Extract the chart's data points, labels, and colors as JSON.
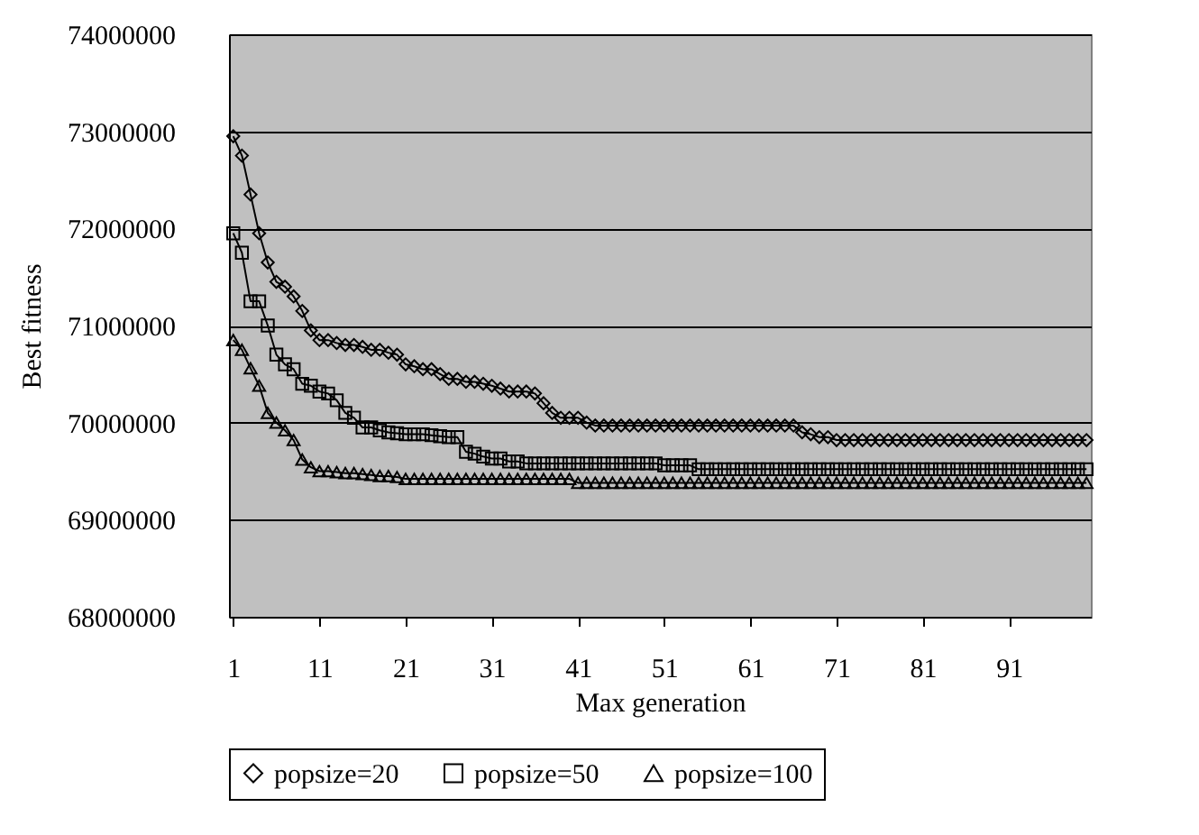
{
  "chart_data": {
    "type": "line",
    "xlabel": "Max generation",
    "ylabel": "Best fitness",
    "x": [
      1,
      2,
      3,
      4,
      5,
      6,
      7,
      8,
      9,
      10,
      11,
      12,
      13,
      14,
      15,
      16,
      17,
      18,
      19,
      20,
      21,
      22,
      23,
      24,
      25,
      26,
      27,
      28,
      29,
      30,
      31,
      32,
      33,
      34,
      35,
      36,
      37,
      38,
      39,
      40,
      41,
      42,
      43,
      44,
      45,
      46,
      47,
      48,
      49,
      50,
      51,
      52,
      53,
      54,
      55,
      56,
      57,
      58,
      59,
      60,
      61,
      62,
      63,
      64,
      65,
      66,
      67,
      68,
      69,
      70,
      71,
      72,
      73,
      74,
      75,
      76,
      77,
      78,
      79,
      80,
      81,
      82,
      83,
      84,
      85,
      86,
      87,
      88,
      89,
      90,
      91,
      92,
      93,
      94,
      95,
      96,
      97,
      98,
      99,
      100
    ],
    "xlim": [
      0.5,
      100.5
    ],
    "xticks": [
      1,
      11,
      21,
      31,
      41,
      51,
      61,
      71,
      81,
      91
    ],
    "ylim": [
      68000000,
      74000000
    ],
    "yticks": [
      68000000,
      69000000,
      70000000,
      71000000,
      72000000,
      73000000,
      74000000
    ],
    "grid": "y",
    "legend": "bottom",
    "line_style": "solid",
    "series": [
      {
        "name": "popsize=20",
        "color": "#000000",
        "marker": "diamond",
        "values": [
          72950000,
          72750000,
          72350000,
          71950000,
          71650000,
          71450000,
          71400000,
          71300000,
          71150000,
          70950000,
          70850000,
          70850000,
          70820000,
          70800000,
          70800000,
          70780000,
          70750000,
          70750000,
          70720000,
          70700000,
          70600000,
          70580000,
          70550000,
          70550000,
          70500000,
          70450000,
          70450000,
          70420000,
          70420000,
          70400000,
          70380000,
          70350000,
          70320000,
          70320000,
          70320000,
          70300000,
          70200000,
          70100000,
          70050000,
          70050000,
          70050000,
          70000000,
          69970000,
          69970000,
          69970000,
          69970000,
          69970000,
          69970000,
          69970000,
          69970000,
          69970000,
          69970000,
          69970000,
          69970000,
          69970000,
          69970000,
          69970000,
          69970000,
          69970000,
          69970000,
          69970000,
          69970000,
          69970000,
          69970000,
          69970000,
          69970000,
          69900000,
          69880000,
          69850000,
          69850000,
          69820000,
          69820000,
          69820000,
          69820000,
          69820000,
          69820000,
          69820000,
          69820000,
          69820000,
          69820000,
          69820000,
          69820000,
          69820000,
          69820000,
          69820000,
          69820000,
          69820000,
          69820000,
          69820000,
          69820000,
          69820000,
          69820000,
          69820000,
          69820000,
          69820000,
          69820000,
          69820000,
          69820000,
          69820000,
          69820000
        ]
      },
      {
        "name": "popsize=50",
        "color": "#000000",
        "marker": "square",
        "values": [
          71950000,
          71750000,
          71250000,
          71250000,
          71000000,
          70700000,
          70600000,
          70550000,
          70400000,
          70380000,
          70320000,
          70300000,
          70230000,
          70100000,
          70050000,
          69950000,
          69950000,
          69920000,
          69900000,
          69890000,
          69880000,
          69880000,
          69880000,
          69870000,
          69860000,
          69850000,
          69850000,
          69700000,
          69680000,
          69650000,
          69630000,
          69630000,
          69600000,
          69600000,
          69580000,
          69580000,
          69580000,
          69580000,
          69580000,
          69580000,
          69580000,
          69580000,
          69580000,
          69580000,
          69580000,
          69580000,
          69580000,
          69580000,
          69580000,
          69580000,
          69560000,
          69560000,
          69560000,
          69560000,
          69520000,
          69520000,
          69520000,
          69520000,
          69520000,
          69520000,
          69520000,
          69520000,
          69520000,
          69520000,
          69520000,
          69520000,
          69520000,
          69520000,
          69520000,
          69520000,
          69520000,
          69520000,
          69520000,
          69520000,
          69520000,
          69520000,
          69520000,
          69520000,
          69520000,
          69520000,
          69520000,
          69520000,
          69520000,
          69520000,
          69520000,
          69520000,
          69520000,
          69520000,
          69520000,
          69520000,
          69520000,
          69520000,
          69520000,
          69520000,
          69520000,
          69520000,
          69520000,
          69520000,
          69520000,
          69520000
        ]
      },
      {
        "name": "popsize=100",
        "color": "#000000",
        "marker": "triangle",
        "values": [
          70850000,
          70750000,
          70560000,
          70380000,
          70100000,
          70000000,
          69920000,
          69820000,
          69620000,
          69540000,
          69500000,
          69500000,
          69490000,
          69480000,
          69480000,
          69470000,
          69460000,
          69450000,
          69450000,
          69440000,
          69420000,
          69420000,
          69420000,
          69420000,
          69420000,
          69420000,
          69420000,
          69420000,
          69420000,
          69420000,
          69420000,
          69420000,
          69420000,
          69420000,
          69420000,
          69420000,
          69420000,
          69420000,
          69420000,
          69420000,
          69380000,
          69380000,
          69380000,
          69380000,
          69380000,
          69380000,
          69380000,
          69380000,
          69380000,
          69380000,
          69380000,
          69380000,
          69380000,
          69380000,
          69380000,
          69380000,
          69380000,
          69380000,
          69380000,
          69380000,
          69380000,
          69380000,
          69380000,
          69380000,
          69380000,
          69380000,
          69380000,
          69380000,
          69380000,
          69380000,
          69380000,
          69380000,
          69380000,
          69380000,
          69380000,
          69380000,
          69380000,
          69380000,
          69380000,
          69380000,
          69380000,
          69380000,
          69380000,
          69380000,
          69380000,
          69380000,
          69380000,
          69380000,
          69380000,
          69380000,
          69380000,
          69380000,
          69380000,
          69380000,
          69380000,
          69380000,
          69380000,
          69380000,
          69380000,
          69380000
        ]
      }
    ]
  }
}
